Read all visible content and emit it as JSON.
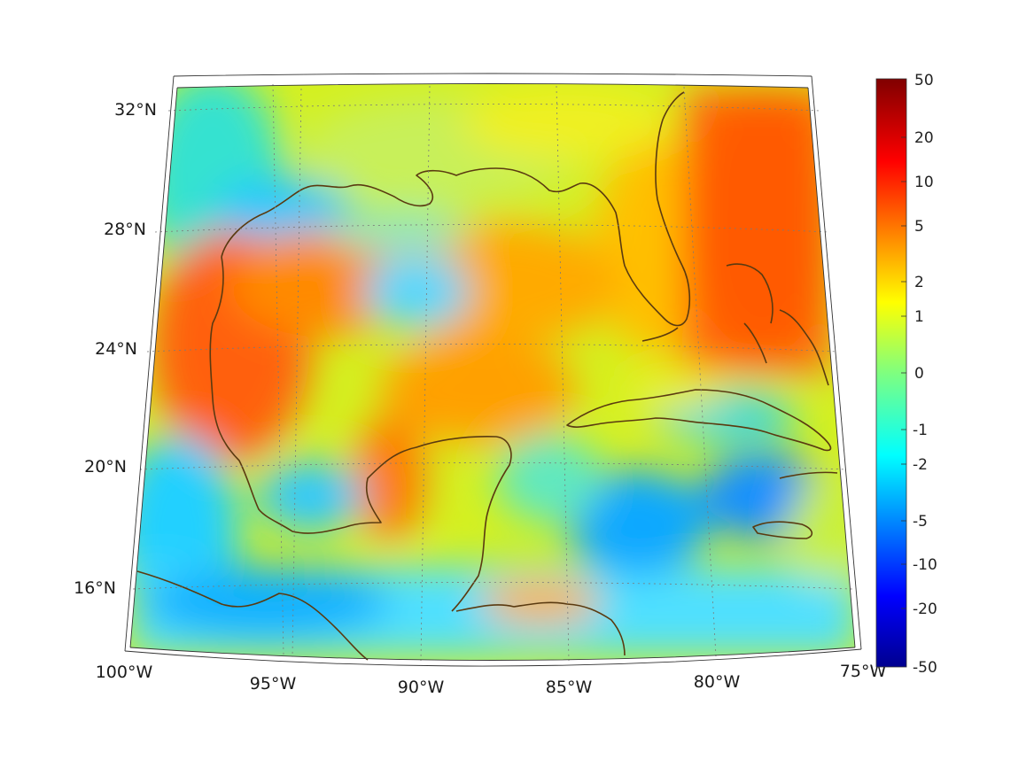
{
  "map": {
    "projection": "conic",
    "extent": {
      "lon": [
        -100,
        -75
      ],
      "lat": [
        14.5,
        33
      ]
    },
    "lat_labels": [
      "32°N",
      "28°N",
      "24°N",
      "20°N",
      "16°N"
    ],
    "lon_labels": [
      "100°W",
      "95°W",
      "90°W",
      "85°W",
      "80°W",
      "75°W"
    ],
    "coastline_color": "#5a3a10",
    "graticule": "dotted"
  },
  "colorbar": {
    "colormap": "jet",
    "tick_labels": [
      "50",
      "20",
      "10",
      "5",
      "2",
      "1",
      "0",
      "-1",
      "-2",
      "-5",
      "-10",
      "-20",
      "-50"
    ],
    "range": [
      -50,
      50
    ]
  }
}
